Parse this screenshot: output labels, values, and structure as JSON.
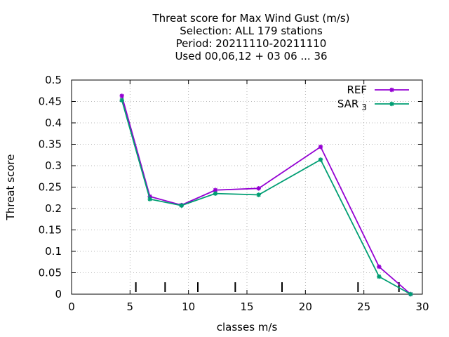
{
  "chart_data": {
    "type": "line",
    "title_lines": [
      "Threat score  for Max Wind Gust (m/s)",
      "Selection: ALL    179 stations",
      "Period: 20211110-20211110",
      "Used  00,06,12  + 03 06 ... 36"
    ],
    "xlabel": "classes m/s",
    "ylabel": "Threat score",
    "xlim": [
      0,
      30
    ],
    "ylim": [
      0,
      0.5
    ],
    "xticks": [
      "0",
      "5",
      "10",
      "15",
      "20",
      "25",
      "30"
    ],
    "yticks": [
      "0",
      "0.05",
      "0.1",
      "0.15",
      "0.2",
      "0.25",
      "0.3",
      "0.35",
      "0.4",
      "0.45",
      "0.5"
    ],
    "grid": true,
    "legend_position": "top-right",
    "class_markers_x": [
      5.5,
      8,
      10.8,
      14,
      18,
      24.5,
      28
    ],
    "series": [
      {
        "name": "REF",
        "color": "#9400d3",
        "x": [
          4.3,
          6.7,
          9.4,
          12.3,
          16.0,
          21.3,
          26.3,
          29.0
        ],
        "y": [
          0.463,
          0.228,
          0.208,
          0.243,
          0.247,
          0.344,
          0.064,
          0.0
        ]
      },
      {
        "name": "SAR",
        "name_subscript": "3",
        "color": "#009e73",
        "x": [
          4.3,
          6.7,
          9.4,
          12.3,
          16.0,
          21.3,
          26.3,
          29.0
        ],
        "y": [
          0.453,
          0.222,
          0.207,
          0.235,
          0.232,
          0.314,
          0.041,
          0.0
        ]
      }
    ]
  }
}
